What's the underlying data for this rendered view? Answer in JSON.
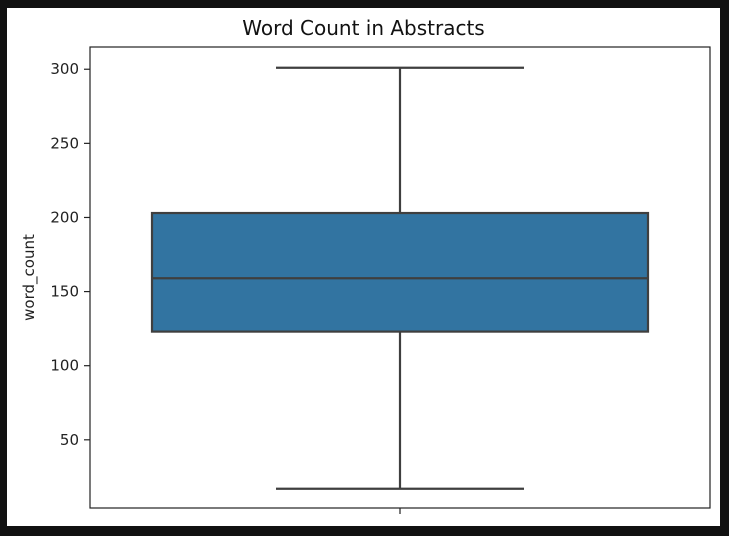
{
  "chart_data": {
    "type": "box",
    "title": "Word Count in Abstracts",
    "ylabel": "word_count",
    "xlabel": "",
    "ylim": [
      4,
      315
    ],
    "yticks": [
      50,
      100,
      150,
      200,
      250,
      300
    ],
    "ytick_labels": [
      "50",
      "100",
      "150",
      "200",
      "250",
      "300"
    ],
    "box": {
      "min": 17,
      "q1": 123,
      "median": 159,
      "q3": 203,
      "max": 301
    },
    "grid": false,
    "colors": {
      "box_fill": "#3274a1",
      "box_edge": "#3f3f3f",
      "axis": "#222222"
    }
  }
}
